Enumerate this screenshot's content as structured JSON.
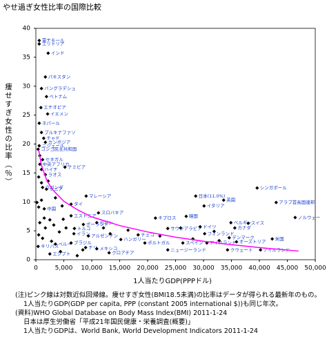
{
  "chart_data": {
    "type": "scatter",
    "title": "やせ過ぎ女性比率の国際比較",
    "x_label": "1人当たりGDP(PPPドル)",
    "y_label": "痩せすぎ女性の比率（％）",
    "xlim": [
      0,
      50000
    ],
    "ylim": [
      0,
      40
    ],
    "xticks": [
      0,
      {
        "value": 5000,
        "label": "5,000"
      },
      {
        "value": 10000,
        "label": "10,000"
      },
      {
        "value": 15000,
        "label": "15,000"
      },
      {
        "value": 20000,
        "label": "20,000"
      },
      {
        "value": 25000,
        "label": "25,000"
      },
      {
        "value": 30000,
        "label": "30,000"
      },
      {
        "value": 35000,
        "label": "35,000"
      },
      {
        "value": 40000,
        "label": "40,000"
      },
      {
        "value": 45000,
        "label": "45,000"
      },
      {
        "value": 50000,
        "label": "50,000"
      }
    ],
    "yticks": [
      0,
      5,
      10,
      15,
      20,
      25,
      30,
      35,
      40
    ],
    "color": "#000000",
    "point_labels": [
      "東チモール",
      "エリトリア",
      "インド",
      "パキスタン",
      "バングラデシュ",
      "ベトナム",
      "エチオピア",
      "イエメン",
      "ネパール",
      "ブルキナファソ",
      "チャド",
      "カンボジア",
      "ニジェール",
      "コンゴ民主共和国",
      "セネガル",
      "中央アフリカ",
      "ハイチ",
      "ナミビア",
      "ラオス",
      "ウガンダ",
      "ケニア",
      "シンガポール",
      "アラブ首長国連邦",
      "日本(11.0%)",
      "マレーシア",
      "タイ",
      "中国",
      "スロバキア",
      "エストニア",
      "ガボン",
      "ポーランド",
      "トルコ",
      "イラン",
      "アルゼンチン",
      "ペルー",
      "ブラジル",
      "チリ",
      "メキシコ",
      "クロアチア",
      "ハンガリー",
      "チェコ",
      "エジプト",
      "キリバス",
      "キプロス",
      "韓国",
      "イタリア",
      "英国",
      "サウジアラビア",
      "ドイツ",
      "ベルギー",
      "カナダ",
      "スイス",
      "フィンランド",
      "オーストリア",
      "デンマーク",
      "ポルトガル",
      "スペイン",
      "アイスランド",
      "ニュージーランド",
      "クウェート",
      "米国",
      "アイルランド",
      "ノルウェー",
      null,
      null,
      null,
      null,
      null,
      null,
      null,
      null,
      null,
      null,
      null,
      null,
      null,
      null,
      null,
      null,
      null,
      null,
      null,
      null,
      null,
      null,
      null,
      null,
      null,
      null,
      null,
      null,
      null,
      null,
      null
    ],
    "x": [
      600,
      600,
      2200,
      1700,
      1000,
      1900,
      900,
      2100,
      600,
      1000,
      1400,
      1700,
      600,
      400,
      1200,
      700,
      1000,
      5200,
      1700,
      1200,
      1900,
      39600,
      43000,
      28600,
      9000,
      6300,
      1500,
      11200,
      6300,
      10900,
      8500,
      6900,
      6800,
      9400,
      3500,
      6300,
      8900,
      10900,
      13100,
      15200,
      18300,
      2500,
      400,
      21400,
      26900,
      30100,
      33600,
      23600,
      29400,
      34900,
      35600,
      38000,
      30200,
      35900,
      34600,
      19500,
      26300,
      30600,
      23600,
      34300,
      42300,
      40200,
      46400,
      200,
      500,
      1000,
      1500,
      700,
      1700,
      2500,
      3200,
      4200,
      4900,
      5400,
      500,
      1200,
      2800,
      4400,
      7400,
      8400,
      12100,
      13300,
      16500,
      22200,
      25900,
      28100,
      31900,
      32800,
      1000,
      500,
      2200,
      3500,
      4700,
      700
    ],
    "values": [
      37.9,
      37.3,
      35.7,
      31.6,
      29.6,
      28.2,
      26.3,
      25.2,
      23.6,
      22.0,
      21.0,
      20.3,
      19.7,
      19.1,
      17.3,
      16.5,
      15.6,
      16.0,
      14.7,
      12.5,
      12.2,
      12.4,
      9.9,
      11.0,
      11.0,
      9.6,
      8.8,
      8.1,
      7.6,
      6.4,
      6.1,
      5.4,
      4.5,
      4.1,
      2.7,
      2.9,
      2.1,
      1.9,
      1.2,
      3.5,
      4.3,
      1.0,
      2.3,
      7.2,
      7.5,
      9.3,
      10.3,
      5.4,
      5.7,
      6.4,
      5.5,
      6.3,
      4.5,
      3.1,
      3.8,
      2.9,
      2.9,
      2.9,
      1.7,
      1.7,
      3.6,
      1.7,
      7.3,
      9.9,
      9.1,
      10.3,
      7.2,
      6.4,
      5.5,
      6.9,
      6.0,
      4.8,
      7.0,
      5.5,
      4.3,
      3.7,
      3.2,
      1.4,
      0.7,
      1.7,
      5.5,
      4.5,
      5.1,
      4.1,
      5.5,
      3.6,
      4.9,
      3.3,
      13.3,
      14.3,
      13.6,
      10.7,
      9.3,
      18.0
    ],
    "trend": {
      "color": "#ff00ff",
      "x": [
        500,
        1000,
        2000,
        3000,
        5000,
        7500,
        10000,
        15000,
        20000,
        25000,
        30000,
        35000,
        40000,
        47000
      ],
      "values": [
        19.0,
        16.3,
        13.6,
        12.1,
        10.1,
        8.6,
        7.4,
        5.9,
        4.8,
        3.9,
        3.2,
        2.6,
        2.1,
        1.5
      ]
    },
    "notes": [
      "(注)ピンク線は対数近似回帰線。痩せすぎ女性(BMI18.5未満)の比率はデータが得られる最新年のもの。",
      "1人当たりGDP(GDP per capita, PPP (constant 2005 international $))も同じ年次。",
      "(資料)WHO Global Database on Body Mass Index(BMI) 2011-1-24",
      "日本は厚生労働省「平成21年国民健康・栄養調査(概要)」",
      "1人当たりGDPは、World Bank, World Development Indicators 2011-1-24"
    ]
  }
}
